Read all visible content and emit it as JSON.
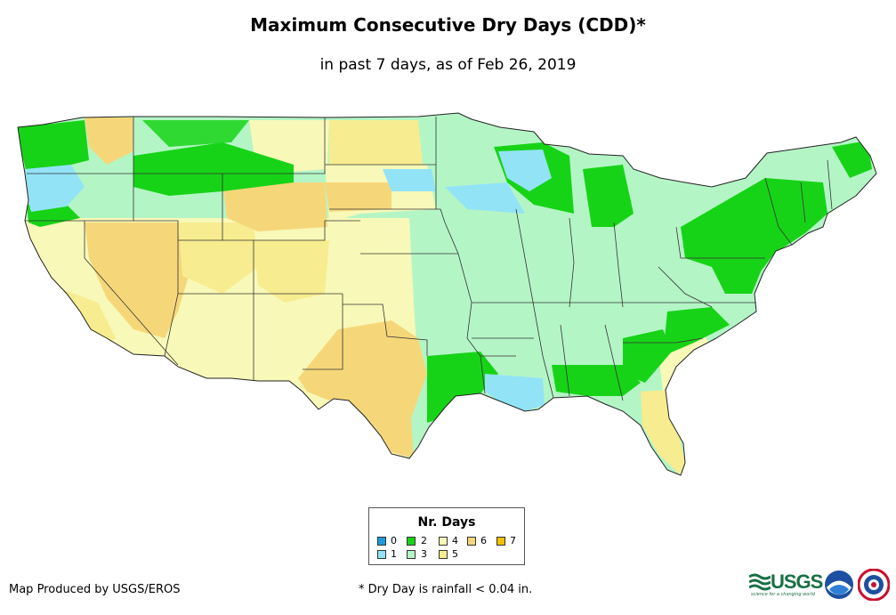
{
  "title": "Maximum Consecutive Dry Days (CDD)*",
  "subtitle": "in past 7 days, as of Feb 26, 2019",
  "legend": {
    "title": "Nr. Days",
    "items": [
      {
        "label": "0",
        "color": "#1f9bd8"
      },
      {
        "label": "1",
        "color": "#93e3f7"
      },
      {
        "label": "2",
        "color": "#17d317"
      },
      {
        "label": "3",
        "color": "#b4f5c6"
      },
      {
        "label": "4",
        "color": "#f8f8b8"
      },
      {
        "label": "5",
        "color": "#f7ec8f"
      },
      {
        "label": "6",
        "color": "#f5d77a"
      },
      {
        "label": "7",
        "color": "#f5c000"
      }
    ]
  },
  "credit": "Map Produced by USGS/EROS",
  "footnote": "* Dry Day is rainfall < 0.04 in.",
  "logos": {
    "usgs": "USGS",
    "usgs_tagline": "science for a changing world",
    "noaa": "NOAA",
    "nws": "NWS"
  }
}
